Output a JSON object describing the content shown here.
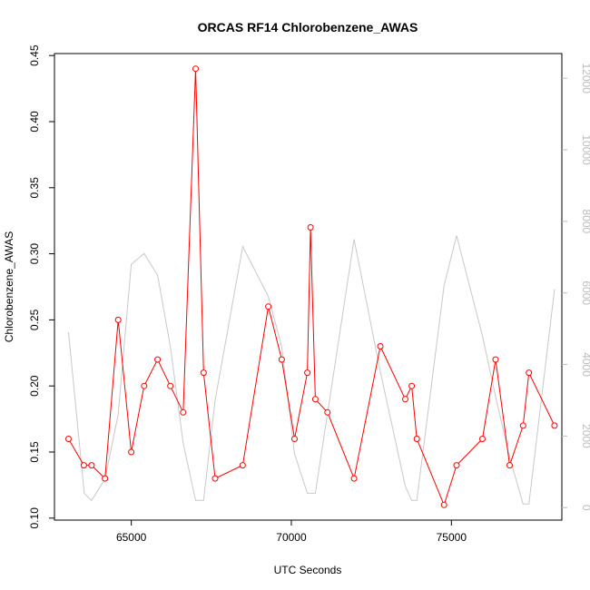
{
  "chart_data": {
    "type": "line",
    "title": "ORCAS RF14 Chlorobenzene_AWAS",
    "xlabel": "UTC Seconds",
    "ylabel": "Chlorobenzene_AWAS",
    "xlim": [
      62600,
      78450
    ],
    "ylim": [
      0.0985,
      0.4515
    ],
    "y2lim": [
      -350,
      12690
    ],
    "x_ticks": [
      65000,
      70000,
      75000
    ],
    "x_tick_labels": [
      "65000",
      "70000",
      "75000"
    ],
    "y_ticks": [
      0.1,
      0.15,
      0.2,
      0.25,
      0.3,
      0.35,
      0.4,
      0.45
    ],
    "y_tick_labels": [
      "0.10",
      "0.15",
      "0.20",
      "0.25",
      "0.30",
      "0.35",
      "0.40",
      "0.45"
    ],
    "y2_ticks": [
      0,
      2000,
      4000,
      6000,
      8000,
      10000,
      12000
    ],
    "y2_tick_labels": [
      "0",
      "2000",
      "4000",
      "6000",
      "8000",
      "10000",
      "12000"
    ],
    "grid": false,
    "colors": {
      "primary": "#ff0000",
      "secondary": "#c8c8c8",
      "secondary_axis": "#bbbbbb",
      "axis": "#000000"
    },
    "series": [
      {
        "axis": "left",
        "marker": "circle",
        "x": [
          63040,
          63520,
          63760,
          64180,
          64590,
          65000,
          65400,
          65820,
          66220,
          66620,
          67010,
          67260,
          67620,
          68480,
          69280,
          69700,
          70100,
          70500,
          70600,
          70750,
          71130,
          71960,
          72780,
          73560,
          73760,
          73920,
          74770,
          75160,
          75970,
          76380,
          76820,
          77240,
          77420,
          78220
        ],
        "values": [
          0.16,
          0.14,
          0.14,
          0.13,
          0.25,
          0.15,
          0.2,
          0.22,
          0.2,
          0.18,
          0.44,
          0.21,
          0.13,
          0.14,
          0.26,
          0.22,
          0.16,
          0.21,
          0.32,
          0.19,
          0.18,
          0.13,
          0.23,
          0.19,
          0.2,
          0.16,
          0.11,
          0.14,
          0.16,
          0.22,
          0.14,
          0.17,
          0.21,
          0.17
        ]
      },
      {
        "axis": "right",
        "x": [
          63040,
          63530,
          63760,
          64180,
          64590,
          65000,
          65400,
          65820,
          66220,
          66620,
          67010,
          67260,
          67620,
          68480,
          69280,
          69700,
          70100,
          70500,
          70750,
          71960,
          72780,
          73560,
          73760,
          73920,
          74770,
          75160,
          75970,
          76380,
          76820,
          77240,
          77420,
          78220
        ],
        "values": [
          4900,
          400,
          200,
          800,
          2600,
          6800,
          7100,
          6500,
          4500,
          1800,
          200,
          200,
          3000,
          7300,
          5900,
          4500,
          1500,
          400,
          400,
          7500,
          3800,
          600,
          200,
          200,
          6200,
          7600,
          4800,
          3100,
          1400,
          100,
          100,
          6100
        ]
      }
    ]
  }
}
